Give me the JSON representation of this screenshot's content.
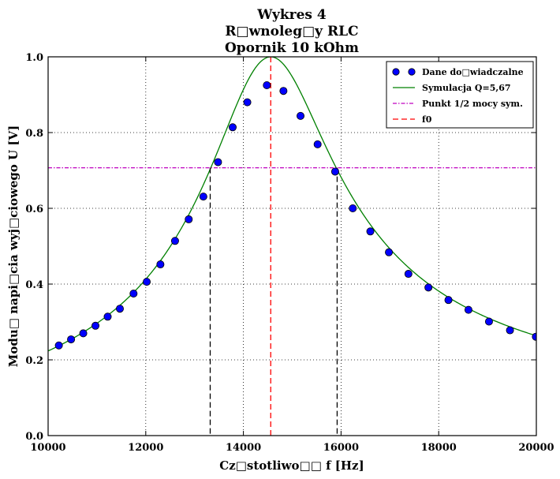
{
  "chart_data": {
    "type": "scatter",
    "title": [
      "Wykres 4",
      "R□wnoleg□y RLC",
      "Opornik 10 kOhm"
    ],
    "xlabel": "Cz□stotliwo□□ f [Hz]",
    "ylabel": "Modu□ napi□cia wyj□ciowego U [V]",
    "xlim": [
      10000,
      20000
    ],
    "ylim": [
      0.0,
      1.0
    ],
    "xticks": [
      10000,
      12000,
      14000,
      16000,
      18000,
      20000
    ],
    "xtick_labels": [
      "10000",
      "12000",
      "14000",
      "16000",
      "18000",
      "20000"
    ],
    "yticks": [
      0.0,
      0.2,
      0.4,
      0.6,
      0.8,
      1.0
    ],
    "ytick_labels": [
      "0.0",
      "0.2",
      "0.4",
      "0.6",
      "0.8",
      "1.0"
    ],
    "grid": true,
    "legend_position": "top-right",
    "series": [
      {
        "name": "Dane do□wiadczalne",
        "kind": "points",
        "color": "#0000ff",
        "x": [
          10220,
          10470,
          10720,
          10970,
          11220,
          11470,
          11750,
          12020,
          12300,
          12600,
          12880,
          13180,
          13480,
          13780,
          14080,
          14480,
          14820,
          15170,
          15520,
          15880,
          16240,
          16600,
          16980,
          17380,
          17790,
          18200,
          18610,
          19030,
          19460,
          19990
        ],
        "y": [
          0.238,
          0.254,
          0.27,
          0.29,
          0.314,
          0.335,
          0.375,
          0.406,
          0.452,
          0.514,
          0.571,
          0.631,
          0.722,
          0.814,
          0.88,
          0.925,
          0.91,
          0.844,
          0.769,
          0.697,
          0.6,
          0.539,
          0.484,
          0.427,
          0.391,
          0.358,
          0.332,
          0.301,
          0.278,
          0.261
        ]
      },
      {
        "name": "Symulacja Q=5,67",
        "kind": "line",
        "color": "#008000",
        "f0": 14560,
        "Q": 5.67
      },
      {
        "name": "Punkt 1/2 mocy sym.",
        "kind": "hline",
        "color": "#bf00bf",
        "y": 0.707
      },
      {
        "name": "f0",
        "kind": "vline",
        "color": "#ff0000",
        "x": 14560
      }
    ],
    "half_power_markers": {
      "color": "#000000",
      "x": [
        13320,
        15920
      ],
      "y": 0.707
    }
  }
}
